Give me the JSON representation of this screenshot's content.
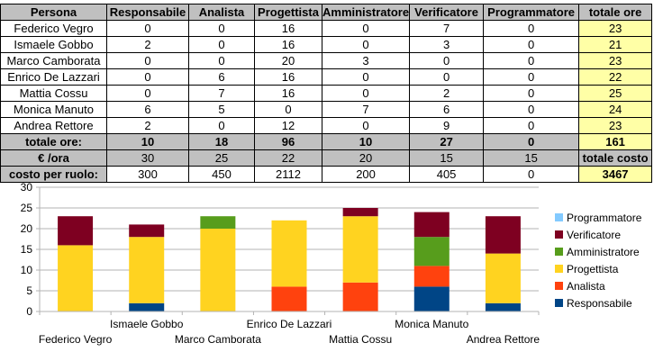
{
  "table": {
    "headers": [
      "Persona",
      "Responsabile",
      "Analista",
      "Progettista",
      "Amministratore",
      "Verificatore",
      "Programmatore",
      "totale ore"
    ],
    "rows": [
      [
        "Federico Vegro",
        "0",
        "0",
        "16",
        "0",
        "7",
        "0",
        "23"
      ],
      [
        "Ismaele Gobbo",
        "2",
        "0",
        "16",
        "0",
        "3",
        "0",
        "21"
      ],
      [
        "Marco Camborata",
        "0",
        "0",
        "20",
        "3",
        "0",
        "0",
        "23"
      ],
      [
        "Enrico De Lazzari",
        "0",
        "6",
        "16",
        "0",
        "0",
        "0",
        "22"
      ],
      [
        "Mattia Cossu",
        "0",
        "7",
        "16",
        "0",
        "2",
        "0",
        "25"
      ],
      [
        "Monica Manuto",
        "6",
        "5",
        "0",
        "7",
        "6",
        "0",
        "24"
      ],
      [
        "Andrea Rettore",
        "2",
        "0",
        "12",
        "0",
        "9",
        "0",
        "23"
      ]
    ],
    "totals": [
      "totale ore:",
      "10",
      "18",
      "96",
      "10",
      "27",
      "0",
      "161"
    ],
    "rate": [
      "€ /ora",
      "30",
      "25",
      "22",
      "20",
      "15",
      "15",
      "totale costo"
    ],
    "cost": [
      "costo per ruolo:",
      "300",
      "450",
      "2112",
      "200",
      "405",
      "0",
      "3467"
    ]
  },
  "chart_data": {
    "type": "bar",
    "stacked": true,
    "categories": [
      "Federico Vegro",
      "Ismaele Gobbo",
      "Marco Camborata",
      "Enrico De Lazzari",
      "Mattia Cossu",
      "Monica Manuto",
      "Andrea Rettore"
    ],
    "series": [
      {
        "name": "Responsabile",
        "color": "#004586",
        "values": [
          0,
          2,
          0,
          0,
          0,
          6,
          2
        ]
      },
      {
        "name": "Analista",
        "color": "#ff420e",
        "values": [
          0,
          0,
          0,
          6,
          7,
          5,
          0
        ]
      },
      {
        "name": "Progettista",
        "color": "#ffd320",
        "values": [
          16,
          16,
          20,
          16,
          16,
          0,
          12
        ]
      },
      {
        "name": "Amministratore",
        "color": "#579d1c",
        "values": [
          0,
          0,
          3,
          0,
          0,
          7,
          0
        ]
      },
      {
        "name": "Verificatore",
        "color": "#7e0021",
        "values": [
          7,
          3,
          0,
          0,
          2,
          6,
          9
        ]
      },
      {
        "name": "Programmatore",
        "color": "#83caff",
        "values": [
          0,
          0,
          0,
          0,
          0,
          0,
          0
        ]
      }
    ],
    "ylim": [
      0,
      30
    ],
    "yticks": [
      0,
      5,
      10,
      15,
      20,
      25,
      30
    ],
    "grid": true,
    "legend": "right",
    "legend_order": [
      "Programmatore",
      "Verificatore",
      "Amministratore",
      "Progettista",
      "Analista",
      "Responsabile"
    ]
  }
}
